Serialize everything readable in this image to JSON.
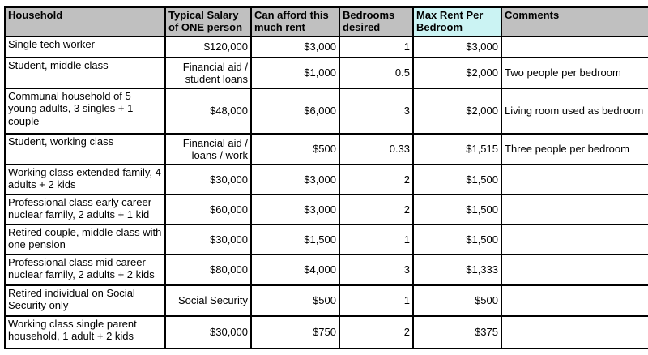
{
  "colors": {
    "header_bg": "#c0c0c0",
    "max_rent_header_bg": "#cbf3f3",
    "border": "#000000",
    "text": "#000000",
    "page_bg": "#ffffff"
  },
  "table": {
    "columns": [
      {
        "label": "Household",
        "highlight": false
      },
      {
        "label": "Typical Salary of ONE person",
        "highlight": false
      },
      {
        "label": "Can afford this much rent",
        "highlight": false
      },
      {
        "label": "Bedrooms desired",
        "highlight": false
      },
      {
        "label": "Max Rent Per Bedroom",
        "highlight": true
      },
      {
        "label": "Comments",
        "highlight": false
      }
    ],
    "row_keys": [
      "household",
      "salary",
      "rent",
      "bedrooms",
      "max_rent",
      "comments"
    ],
    "rows": [
      {
        "household": "Single tech worker",
        "salary": "$120,000",
        "rent": "$3,000",
        "bedrooms": "1",
        "max_rent": "$3,000",
        "comments": ""
      },
      {
        "household": "Student, middle class",
        "salary": "Financial aid / student loans",
        "rent": "$1,000",
        "bedrooms": "0.5",
        "max_rent": "$2,000",
        "comments": "Two people per bedroom"
      },
      {
        "household": "Communal household of 5 young adults, 3 singles + 1 couple",
        "salary": "$48,000",
        "rent": "$6,000",
        "bedrooms": "3",
        "max_rent": "$2,000",
        "comments": "Living room used as bedroom"
      },
      {
        "household": "Student, working class",
        "salary": "Financial aid / loans / work",
        "rent": "$500",
        "bedrooms": "0.33",
        "max_rent": "$1,515",
        "comments": "Three people per bedroom"
      },
      {
        "household": "Working class extended family, 4 adults + 2 kids",
        "salary": "$30,000",
        "rent": "$3,000",
        "bedrooms": "2",
        "max_rent": "$1,500",
        "comments": ""
      },
      {
        "household": "Professional class early career nuclear family, 2 adults + 1 kid",
        "salary": "$60,000",
        "rent": "$3,000",
        "bedrooms": "2",
        "max_rent": "$1,500",
        "comments": ""
      },
      {
        "household": "Retired couple, middle class with one pension",
        "salary": "$30,000",
        "rent": "$1,500",
        "bedrooms": "1",
        "max_rent": "$1,500",
        "comments": ""
      },
      {
        "household": "Professional class mid career nuclear family, 2 adults + 2 kids",
        "salary": "$80,000",
        "rent": "$4,000",
        "bedrooms": "3",
        "max_rent": "$1,333",
        "comments": ""
      },
      {
        "household": "Retired individual on Social Security only",
        "salary": "Social Security",
        "rent": "$500",
        "bedrooms": "1",
        "max_rent": "$500",
        "comments": ""
      },
      {
        "household": "Working class single parent household, 1 adult + 2 kids",
        "salary": "$30,000",
        "rent": "$750",
        "bedrooms": "2",
        "max_rent": "$375",
        "comments": ""
      }
    ]
  }
}
